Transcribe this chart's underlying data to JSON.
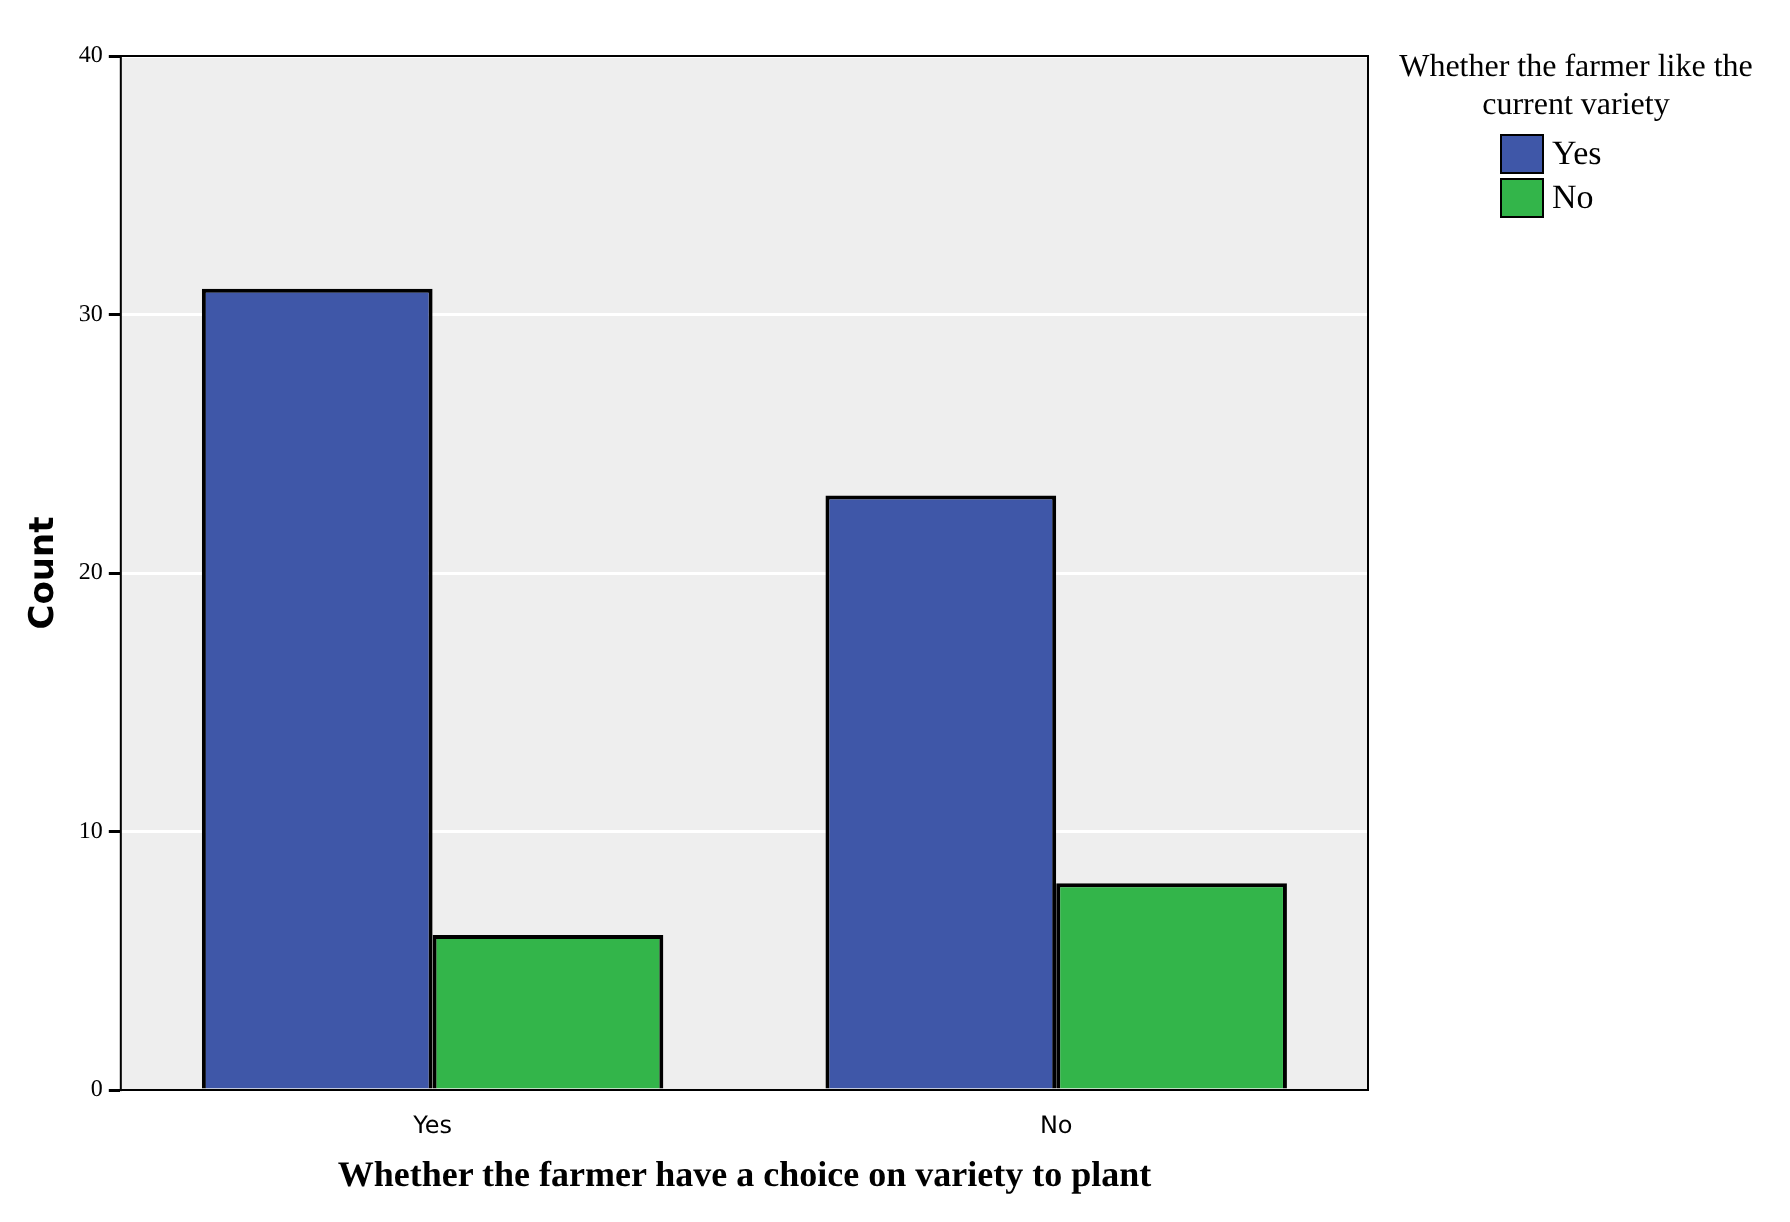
{
  "chart_data": {
    "type": "bar",
    "xlabel": "Whether the farmer have a choice on variety to plant",
    "ylabel": "Count",
    "legend_title": "Whether the farmer like the current variety",
    "categories": [
      "Yes",
      "No"
    ],
    "series": [
      {
        "name": "Yes",
        "color": "#3f57a8",
        "values": [
          31,
          23
        ]
      },
      {
        "name": "No",
        "color": "#33b54a",
        "values": [
          6,
          8
        ]
      }
    ],
    "ylim": [
      0,
      40
    ],
    "yticks": [
      0,
      10,
      20,
      30,
      40
    ],
    "grid": "y",
    "legend": "top right"
  }
}
